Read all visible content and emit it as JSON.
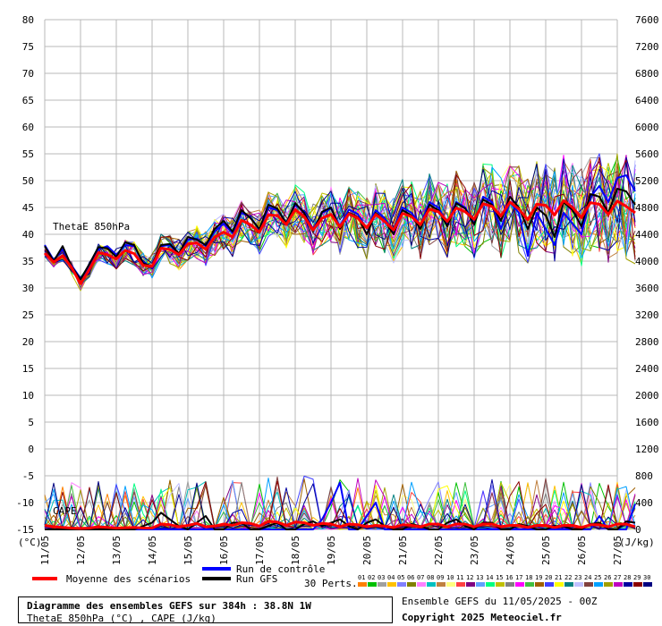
{
  "chart_data": {
    "type": "line",
    "left_axis": {
      "ticks": [
        80,
        75,
        70,
        65,
        60,
        55,
        50,
        45,
        40,
        35,
        30,
        25,
        20,
        15,
        10,
        5,
        0,
        -5,
        -10,
        -15
      ],
      "unit": "(°C)",
      "ylim": [
        -15,
        80
      ]
    },
    "right_axis": {
      "ticks": [
        7600,
        7200,
        6800,
        6400,
        6000,
        5600,
        5200,
        4800,
        4400,
        4000,
        3600,
        3200,
        2800,
        2400,
        2000,
        1600,
        1200,
        800,
        400,
        0
      ],
      "unit": "(J/kg)",
      "ylim": [
        0,
        7600
      ]
    },
    "x_labels": [
      "11/05",
      "12/05",
      "13/05",
      "14/05",
      "15/05",
      "16/05",
      "17/05",
      "18/05",
      "19/05",
      "20/05",
      "21/05",
      "22/05",
      "23/05",
      "24/05",
      "25/05",
      "26/05",
      "27/05"
    ],
    "x_step_hours": 6,
    "panel_labels": {
      "theta": "ThetaE 850hPa",
      "cape": "CAPE"
    },
    "grid": true,
    "series_theta": [
      {
        "name": "Moyenne des scénarios",
        "color": "#ff0000",
        "values": [
          36.5,
          34.8,
          36.0,
          33.8,
          30.8,
          33.5,
          36.6,
          36.2,
          35.4,
          37.0,
          36.4,
          34.2,
          34.0,
          37.4,
          37.2,
          36.2,
          38.2,
          38.4,
          37.2,
          39.5,
          40.4,
          39.5,
          42.6,
          41.8,
          40.4,
          43.6,
          43.5,
          41.8,
          44.6,
          43.3,
          40.8,
          43.0,
          43.7,
          41.4,
          43.8,
          43.0,
          41.2,
          43.7,
          42.4,
          40.8,
          43.9,
          43.3,
          41.8,
          44.7,
          44.2,
          42.4,
          44.9,
          44.2,
          42.8,
          45.7,
          45.2,
          43.4,
          46.0,
          44.7,
          42.7,
          45.6,
          45.4,
          43.6,
          46.3,
          45.0,
          43.1,
          45.9,
          45.6,
          43.7,
          46.2,
          45.2,
          44.0
        ]
      },
      {
        "name": "Run de contrôle",
        "color": "#0000ff",
        "values": [
          38.0,
          35.2,
          37.2,
          34.2,
          31.8,
          33.8,
          37.2,
          37.8,
          36.2,
          38.0,
          37.8,
          34.8,
          33.8,
          37.8,
          38.0,
          36.0,
          39.0,
          39.2,
          37.8,
          40.5,
          42.0,
          40.2,
          44.0,
          43.2,
          40.8,
          45.0,
          44.5,
          42.2,
          45.5,
          44.2,
          41.0,
          44.0,
          44.8,
          41.5,
          44.6,
          43.8,
          41.0,
          44.5,
          43.0,
          40.5,
          45.0,
          44.0,
          41.8,
          46.0,
          45.0,
          42.0,
          46.0,
          45.0,
          42.0,
          47.0,
          46.0,
          41.0,
          46.0,
          44.0,
          36.0,
          44.0,
          41.0,
          38.0,
          44.0,
          42.0,
          40.0,
          47.0,
          49.0,
          46.0,
          50.5,
          51.0,
          48.0
        ]
      },
      {
        "name": "Run GFS",
        "color": "#000000",
        "values": [
          37.8,
          35.0,
          37.8,
          34.0,
          31.6,
          34.5,
          37.6,
          37.4,
          35.8,
          38.5,
          38.0,
          34.6,
          34.0,
          38.0,
          38.2,
          36.4,
          39.5,
          39.0,
          38.0,
          41.0,
          42.5,
          40.5,
          44.5,
          43.0,
          41.0,
          45.5,
          44.8,
          42.0,
          45.8,
          44.0,
          40.5,
          44.2,
          45.0,
          41.0,
          44.0,
          43.2,
          40.0,
          44.0,
          42.5,
          40.0,
          44.5,
          43.5,
          41.0,
          45.5,
          44.5,
          41.5,
          45.8,
          44.8,
          41.8,
          46.5,
          45.5,
          42.5,
          47.0,
          45.0,
          41.0,
          45.0,
          43.5,
          39.5,
          46.0,
          44.5,
          41.5,
          47.5,
          47.0,
          44.0,
          48.5,
          48.0,
          45.5
        ]
      }
    ],
    "series_cape": [
      {
        "name": "Moyenne des scénarios",
        "color": "#ff0000",
        "values": [
          60,
          40,
          30,
          20,
          15,
          20,
          40,
          30,
          20,
          25,
          30,
          20,
          20,
          80,
          70,
          40,
          60,
          90,
          40,
          50,
          80,
          60,
          100,
          90,
          50,
          120,
          110,
          60,
          110,
          100,
          60,
          90,
          80,
          40,
          80,
          70,
          40,
          60,
          50,
          30,
          70,
          60,
          40,
          80,
          80,
          40,
          80,
          80,
          40,
          80,
          80,
          40,
          60,
          60,
          30,
          60,
          60,
          30,
          60,
          60,
          30,
          70,
          70,
          40,
          80,
          80,
          40
        ]
      },
      {
        "name": "Run de contrôle",
        "color": "#0000ff",
        "values": [
          0,
          0,
          0,
          0,
          0,
          0,
          0,
          0,
          0,
          0,
          0,
          0,
          0,
          0,
          0,
          0,
          0,
          0,
          0,
          0,
          0,
          0,
          0,
          0,
          0,
          0,
          0,
          0,
          0,
          0,
          0,
          150,
          400,
          700,
          0,
          0,
          200,
          400,
          0,
          0,
          0,
          0,
          0,
          0,
          0,
          0,
          0,
          0,
          0,
          0,
          0,
          0,
          0,
          0,
          0,
          0,
          0,
          0,
          0,
          0,
          0,
          0,
          200,
          0,
          0,
          0,
          380
        ]
      },
      {
        "name": "Run GFS",
        "color": "#000000",
        "values": [
          0,
          0,
          0,
          0,
          0,
          0,
          0,
          0,
          0,
          0,
          0,
          50,
          100,
          250,
          150,
          50,
          0,
          100,
          200,
          0,
          0,
          100,
          100,
          0,
          0,
          50,
          100,
          0,
          0,
          80,
          120,
          50,
          100,
          150,
          50,
          0,
          100,
          150,
          50,
          0,
          0,
          80,
          50,
          0,
          0,
          100,
          150,
          50,
          0,
          100,
          100,
          0,
          0,
          80,
          50,
          0,
          0,
          50,
          50,
          0,
          0,
          80,
          100,
          0,
          0,
          120,
          100
        ]
      }
    ],
    "member_colors": [
      "#ff8000",
      "#00c000",
      "#a0a0a0",
      "#ffc000",
      "#8080ff",
      "#808000",
      "#ff80ff",
      "#00c0c0",
      "#c08040",
      "#ffff80",
      "#ff4040",
      "#800080",
      "#60a0ff",
      "#00ff80",
      "#c0c000",
      "#808080",
      "#ff00ff",
      "#40c040",
      "#a06000",
      "#4040ff",
      "#ffff00",
      "#008080",
      "#c0c0ff",
      "#804040",
      "#00a0ff",
      "#a0a000",
      "#c000c0",
      "#0000a0",
      "#8b0000",
      "#000080"
    ],
    "legend": {
      "mean": "Moyenne des scénarios",
      "control": "Run de contrôle",
      "gfs": "Run GFS",
      "perts": "30 Perts.",
      "pert_numbers": [
        "01",
        "02",
        "03",
        "04",
        "05",
        "06",
        "07",
        "08",
        "09",
        "10",
        "11",
        "12",
        "13",
        "14",
        "15",
        "16",
        "17",
        "18",
        "19",
        "20",
        "21",
        "22",
        "23",
        "24",
        "25",
        "26",
        "27",
        "28",
        "29",
        "30"
      ]
    }
  },
  "info": {
    "title": "Diagramme des ensembles GEFS sur 384h : 38.8N 1W",
    "subtitle": "ThetaE 850hPa (°C) , CAPE (J/kg)",
    "run": "Ensemble GEFS du 11/05/2025 - 00Z",
    "copyright": "Copyright 2025 Meteociel.fr"
  }
}
